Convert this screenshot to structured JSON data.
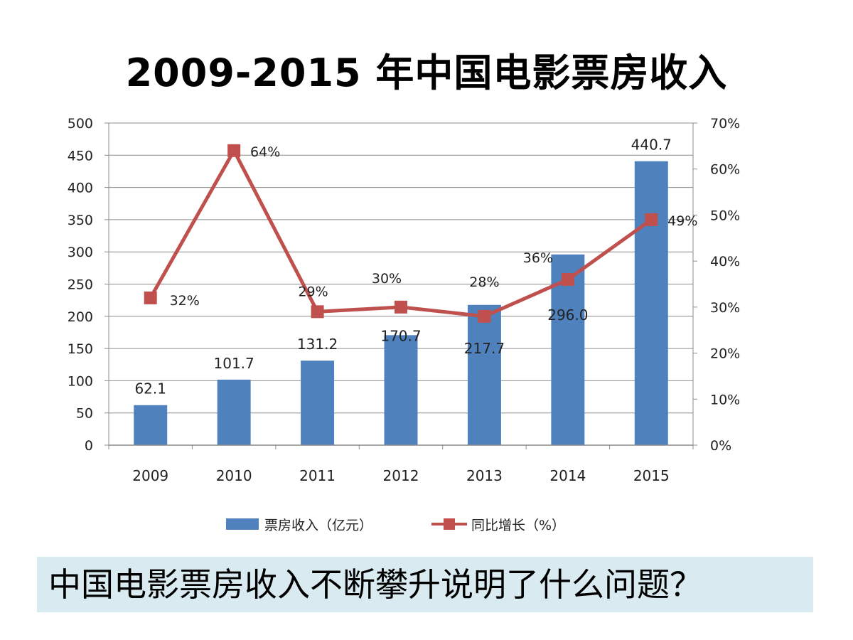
{
  "title": "2009-2015 年中国电影票房收入",
  "question": "中国电影票房收入不断攀升说明了什么问题？",
  "chart_data": {
    "type": "bar",
    "categories": [
      "2009",
      "2010",
      "2011",
      "2012",
      "2013",
      "2014",
      "2015"
    ],
    "bar_series": {
      "name": "票房收入（亿元）",
      "values": [
        62.1,
        101.7,
        131.2,
        170.7,
        217.7,
        296.0,
        440.7
      ],
      "labels": [
        "62.1",
        "101.7",
        "131.2",
        "170.7",
        "217.7",
        "296.0",
        "440.7"
      ],
      "color": "#4f81bd"
    },
    "line_series": {
      "name": "同比增长（%）",
      "values": [
        32,
        64,
        29,
        30,
        28,
        36,
        49
      ],
      "labels": [
        "32%",
        "64%",
        "29%",
        "30%",
        "28%",
        "36%",
        "49%"
      ],
      "color": "#c0504d"
    },
    "y_left": {
      "min": 0,
      "max": 500,
      "ticks": [
        "0",
        "50",
        "100",
        "150",
        "200",
        "250",
        "300",
        "350",
        "400",
        "450",
        "500"
      ]
    },
    "y_right": {
      "min": 0,
      "max": 70,
      "ticks": [
        "0%",
        "10%",
        "20%",
        "30%",
        "40%",
        "50%",
        "60%",
        "70%"
      ]
    },
    "grid": true,
    "legend_position": "bottom"
  }
}
